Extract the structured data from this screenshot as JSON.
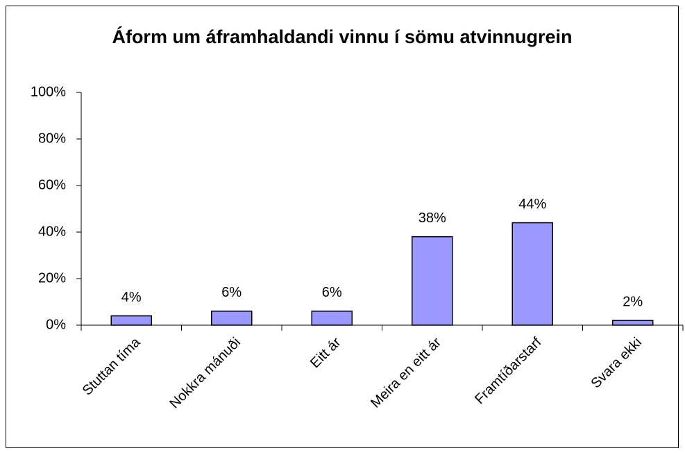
{
  "chart_data": {
    "type": "bar",
    "title": "Áform um áframhaldandi vinnu í sömu atvinnugrein",
    "categories": [
      "Stuttan tíma",
      "Nokkra mánuði",
      "Eitt ár",
      "Meira en eitt ár",
      "Framtíðarstarf",
      "Svara ekki"
    ],
    "values": [
      4,
      6,
      6,
      38,
      44,
      2
    ],
    "value_labels": [
      "4%",
      "6%",
      "6%",
      "38%",
      "44%",
      "2%"
    ],
    "color": "#9999ff",
    "ylim": [
      0,
      100
    ],
    "yticks": [
      {
        "value": 0,
        "label": "0%"
      },
      {
        "value": 20,
        "label": "20%"
      },
      {
        "value": 40,
        "label": "40%"
      },
      {
        "value": 60,
        "label": "60%"
      },
      {
        "value": 80,
        "label": "80%"
      },
      {
        "value": 100,
        "label": "100%"
      }
    ],
    "grid": false
  }
}
